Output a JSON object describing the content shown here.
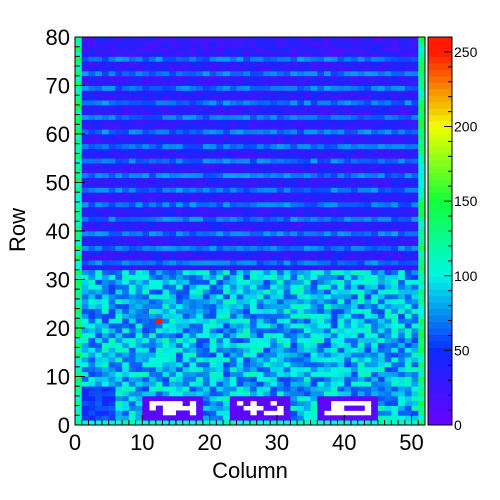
{
  "chart_data": {
    "type": "heatmap",
    "title": "",
    "xlabel": "Column",
    "ylabel": "Row",
    "xlim": [
      0,
      52
    ],
    "ylim": [
      0,
      80
    ],
    "zlim": [
      0,
      260
    ],
    "x_ticks": [
      0,
      10,
      20,
      30,
      40,
      50
    ],
    "y_ticks": [
      0,
      10,
      20,
      30,
      40,
      50,
      60,
      70,
      80
    ],
    "z_ticks": [
      0,
      50,
      100,
      150,
      200,
      250
    ],
    "grid": false,
    "legend": "color scale at right",
    "colormap": "rainbow (purple-blue-cyan-green-yellow-red)",
    "regions": [
      {
        "rows": [
          0,
          1
        ],
        "columns": [
          0,
          52
        ],
        "value_range": [
          100,
          120
        ],
        "note": "bottom edge row bright"
      },
      {
        "rows": [
          1,
          6
        ],
        "columns": [
          10,
          19
        ],
        "value": 0,
        "note": "dead block with white empty cells"
      },
      {
        "rows": [
          1,
          6
        ],
        "columns": [
          23,
          32
        ],
        "value": 0,
        "note": "dead block with white empty cells"
      },
      {
        "rows": [
          1,
          6
        ],
        "columns": [
          36,
          45
        ],
        "value": 0,
        "note": "dead block with white empty cells"
      },
      {
        "rows": [
          0,
          32
        ],
        "columns": [
          0,
          52
        ],
        "value_range": [
          40,
          120
        ],
        "note": "lower half mostly cyan/blue"
      },
      {
        "rows": [
          32,
          80
        ],
        "columns": [
          0,
          52
        ],
        "value_range": [
          20,
          90
        ],
        "note": "upper half banded blue/purple with lighter stripes"
      }
    ],
    "hot_cells": [
      {
        "column": 12,
        "row": 21,
        "value": 255
      }
    ],
    "edge_columns": [
      {
        "column": 0,
        "value_range": [
          100,
          150
        ],
        "note": "left edge column green"
      },
      {
        "column": 51,
        "value_range": [
          100,
          150
        ],
        "note": "right edge column green"
      }
    ],
    "colors": {
      "0": "#6a00ff",
      "50": "#0d2bff",
      "100": "#00f5e5",
      "150": "#12ff3a",
      "200": "#f2ff00",
      "250": "#ff1a00"
    }
  }
}
